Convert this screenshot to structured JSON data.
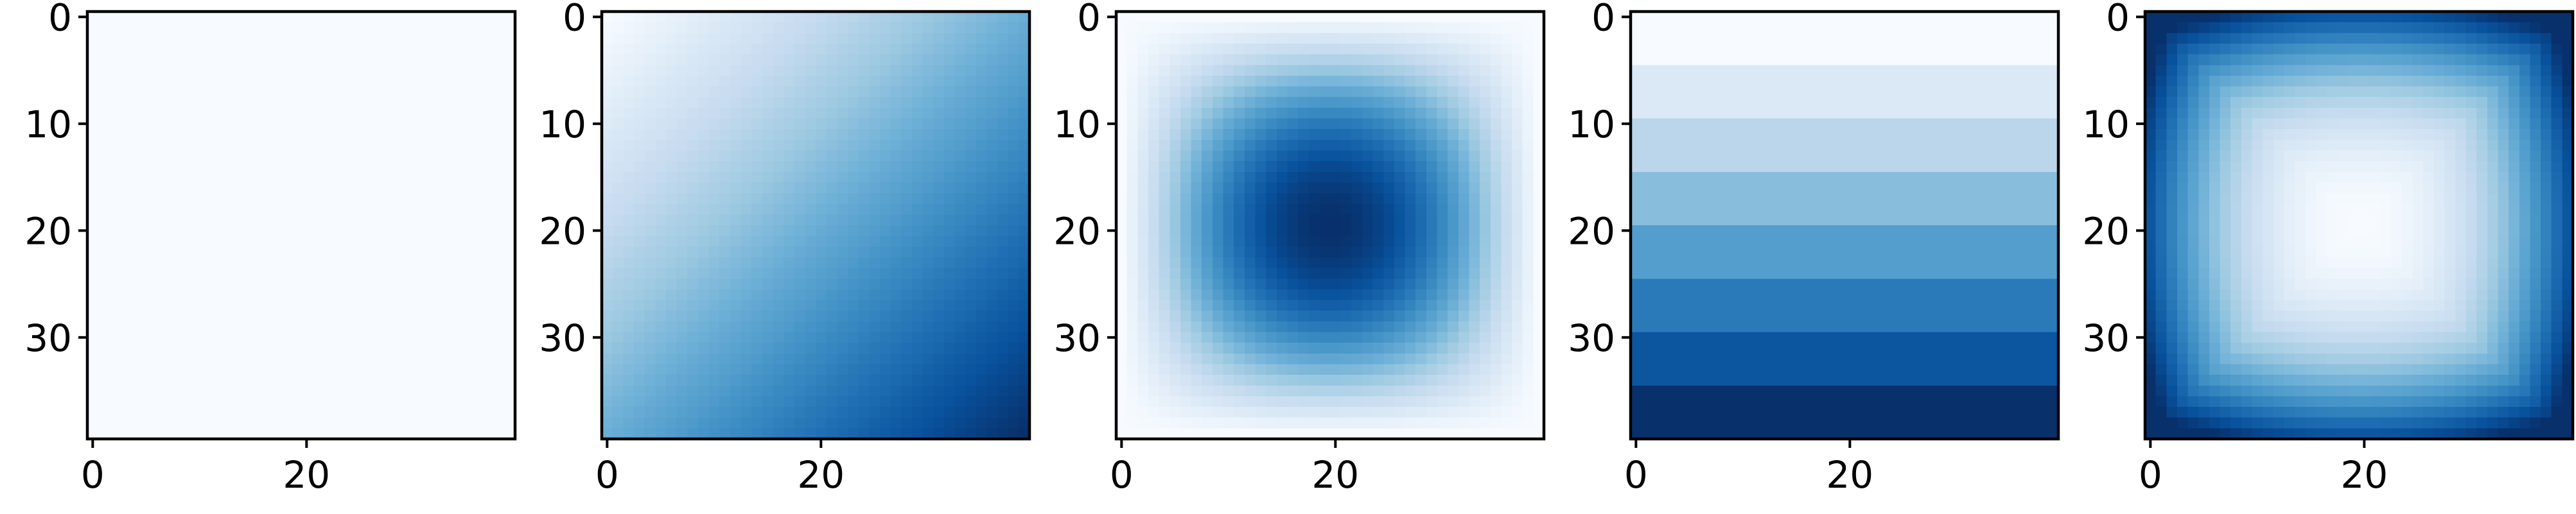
{
  "chart_data": [
    {
      "type": "heatmap",
      "pattern": "uniform",
      "grid_size": [
        40,
        40
      ],
      "colormap": "Blues",
      "xlim": [
        0,
        39
      ],
      "ylim": [
        39,
        0
      ],
      "x_ticks": [
        0,
        20
      ],
      "y_ticks": [
        0,
        10,
        20,
        30
      ],
      "x_tick_labels": [
        "0",
        "20"
      ],
      "y_tick_labels": [
        "0",
        "10",
        "20",
        "30"
      ]
    },
    {
      "type": "heatmap",
      "pattern": "diagonal-gradient",
      "grid_size": [
        40,
        40
      ],
      "colormap": "Blues",
      "xlim": [
        0,
        39
      ],
      "ylim": [
        39,
        0
      ],
      "x_ticks": [
        0,
        20
      ],
      "y_ticks": [
        0,
        10,
        20,
        30
      ],
      "x_tick_labels": [
        "0",
        "20"
      ],
      "y_tick_labels": [
        "0",
        "10",
        "20",
        "30"
      ]
    },
    {
      "type": "heatmap",
      "pattern": "center-peak",
      "grid_size": [
        40,
        40
      ],
      "colormap": "Blues",
      "xlim": [
        0,
        39
      ],
      "ylim": [
        39,
        0
      ],
      "x_ticks": [
        0,
        20
      ],
      "y_ticks": [
        0,
        10,
        20,
        30
      ],
      "x_tick_labels": [
        "0",
        "20"
      ],
      "y_tick_labels": [
        "0",
        "10",
        "20",
        "30"
      ]
    },
    {
      "type": "heatmap",
      "pattern": "horizontal-bands",
      "grid_size": [
        40,
        40
      ],
      "band_count": 8,
      "colormap": "Blues",
      "xlim": [
        0,
        39
      ],
      "ylim": [
        39,
        0
      ],
      "x_ticks": [
        0,
        20
      ],
      "y_ticks": [
        0,
        10,
        20,
        30
      ],
      "x_tick_labels": [
        "0",
        "20"
      ],
      "y_tick_labels": [
        "0",
        "10",
        "20",
        "30"
      ]
    },
    {
      "type": "heatmap",
      "pattern": "center-valley",
      "grid_size": [
        40,
        40
      ],
      "colormap": "Blues",
      "xlim": [
        0,
        39
      ],
      "ylim": [
        39,
        0
      ],
      "x_ticks": [
        0,
        20
      ],
      "y_ticks": [
        0,
        10,
        20,
        30
      ],
      "x_tick_labels": [
        "0",
        "20"
      ],
      "y_tick_labels": [
        "0",
        "10",
        "20",
        "30"
      ]
    }
  ]
}
